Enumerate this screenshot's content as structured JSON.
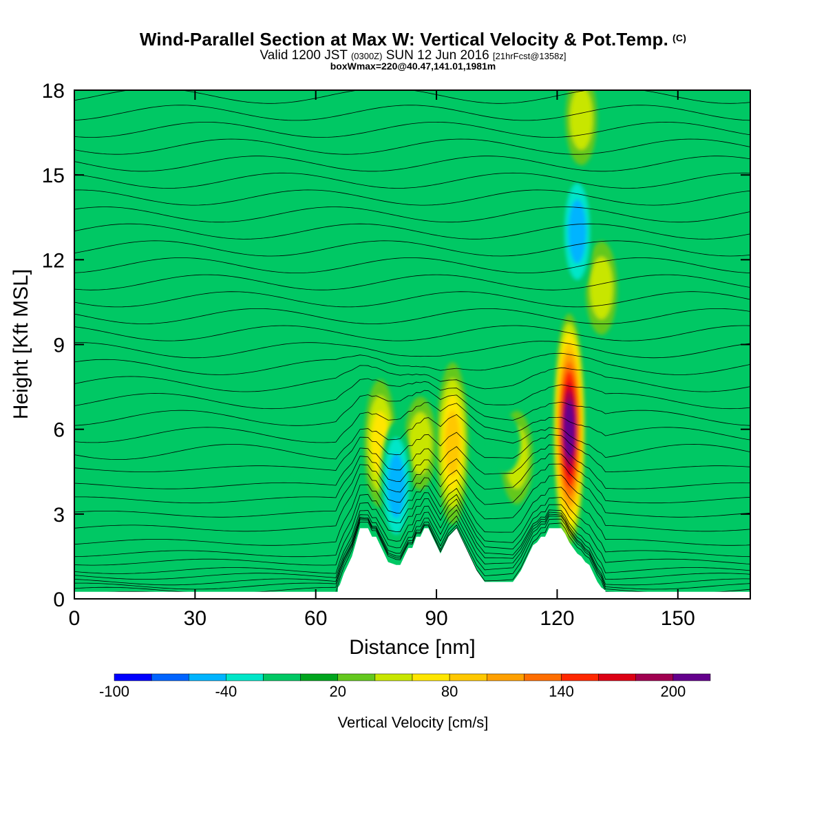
{
  "header": {
    "title": "Wind-Parallel Section at Max W: Vertical Velocity & Pot.Temp.",
    "title_tag": "(C)",
    "valid_a": "Valid 1200 JST",
    "valid_utc": "(0300Z)",
    "valid_b": "SUN 12 Jun 2016",
    "forecast": "[21hrFcst@1358z]",
    "box_info": "boxWmax=220@40.47,141.01,1981m"
  },
  "chart_data": {
    "type": "heatmap",
    "xlabel": "Distance [nm]",
    "ylabel": "Height [Kft MSL]",
    "xlim": [
      0,
      168
    ],
    "ylim": [
      0,
      18
    ],
    "x_ticks": [
      "0",
      "30",
      "60",
      "90",
      "120",
      "150"
    ],
    "x_tick_values": [
      0,
      30,
      60,
      90,
      120,
      150
    ],
    "y_ticks": [
      "0",
      "3",
      "6",
      "9",
      "12",
      "15",
      "18"
    ],
    "y_tick_values": [
      0,
      3,
      6,
      9,
      12,
      15,
      18
    ],
    "background_color": "#00c864",
    "colorbar": {
      "title": "Vertical Velocity [cm/s]",
      "min": -100,
      "max": 220,
      "step": 20,
      "tick_labels": [
        "-100",
        "-40",
        "20",
        "80",
        "140",
        "200"
      ],
      "tick_values": [
        -100,
        -40,
        20,
        80,
        140,
        200
      ],
      "colors": [
        "#0000ff",
        "#0064ff",
        "#00b4ff",
        "#00e6c8",
        "#00c864",
        "#00a51e",
        "#64c81e",
        "#c8e600",
        "#ffe600",
        "#ffc800",
        "#ffa000",
        "#ff6e00",
        "#ff2800",
        "#dc0014",
        "#a00050",
        "#64008c"
      ]
    },
    "terrain_kft": [
      [
        65.5,
        0.4
      ],
      [
        66,
        0.5
      ],
      [
        67,
        0.9
      ],
      [
        68,
        1.2
      ],
      [
        69,
        1.5
      ],
      [
        70,
        2.0
      ],
      [
        71,
        2.5
      ],
      [
        73,
        2.5
      ],
      [
        74,
        2.2
      ],
      [
        75,
        2.2
      ],
      [
        76,
        1.9
      ],
      [
        77,
        1.6
      ],
      [
        78,
        1.3
      ],
      [
        80,
        1.2
      ],
      [
        81,
        1.2
      ],
      [
        82,
        1.5
      ],
      [
        83,
        1.8
      ],
      [
        84,
        1.8
      ],
      [
        85,
        2.2
      ],
      [
        86,
        2.2
      ],
      [
        87,
        2.5
      ],
      [
        88,
        2.5
      ],
      [
        89,
        2.2
      ],
      [
        90,
        1.9
      ],
      [
        91,
        1.6
      ],
      [
        92,
        1.9
      ],
      [
        93,
        2.2
      ],
      [
        95,
        2.5
      ],
      [
        96,
        2.2
      ],
      [
        97,
        1.9
      ],
      [
        98,
        1.6
      ],
      [
        99,
        1.3
      ],
      [
        100,
        1.0
      ],
      [
        101,
        0.8
      ],
      [
        102,
        0.6
      ],
      [
        109,
        0.6
      ],
      [
        110,
        0.8
      ],
      [
        111,
        1.0
      ],
      [
        112,
        1.3
      ],
      [
        113,
        1.6
      ],
      [
        114,
        1.9
      ],
      [
        115,
        2.0
      ],
      [
        116,
        2.2
      ],
      [
        117,
        2.2
      ],
      [
        118,
        2.5
      ],
      [
        121,
        2.5
      ],
      [
        122,
        2.3
      ],
      [
        123,
        2.0
      ],
      [
        124,
        1.8
      ],
      [
        125,
        1.6
      ],
      [
        126,
        1.5
      ],
      [
        127,
        1.3
      ],
      [
        128,
        1.2
      ],
      [
        129,
        0.9
      ],
      [
        130,
        0.6
      ],
      [
        131,
        0.4
      ],
      [
        132,
        0.3
      ]
    ],
    "updraft_features": [
      {
        "x": 123,
        "y": 6.0,
        "w_cm_s": 220
      },
      {
        "x": 94,
        "y": 5.5,
        "w_cm_s": 80
      },
      {
        "x": 76,
        "y": 5.5,
        "w_cm_s": 60
      },
      {
        "x": 86,
        "y": 5.5,
        "w_cm_s": 50
      },
      {
        "x": 110,
        "y": 5.0,
        "w_cm_s": 40
      },
      {
        "x": 131,
        "y": 11.0,
        "w_cm_s": 40
      },
      {
        "x": 126,
        "y": 17.0,
        "w_cm_s": 40
      }
    ],
    "downdraft_features": [
      {
        "x": 80,
        "y": 4.0,
        "w_cm_s": -60
      },
      {
        "x": 125,
        "y": 13.0,
        "w_cm_s": -70
      },
      {
        "x": 107,
        "y": 5.5,
        "w_cm_s": -30
      },
      {
        "x": 57,
        "y": 3.5,
        "w_cm_s": -30
      }
    ],
    "theta_contour_base_heights_kft": [
      0.15,
      0.3,
      0.45,
      0.6,
      0.8,
      1.0,
      1.3,
      1.6,
      2.0,
      2.5,
      3.0,
      3.5,
      4.0,
      4.6,
      5.2,
      5.8,
      6.4,
      7.0,
      7.6,
      8.2,
      8.8,
      9.4,
      10.0,
      10.6,
      11.2,
      11.8,
      12.4,
      13.0,
      13.6,
      14.2,
      14.8,
      15.4,
      16.0,
      16.6,
      17.2,
      17.8
    ]
  }
}
